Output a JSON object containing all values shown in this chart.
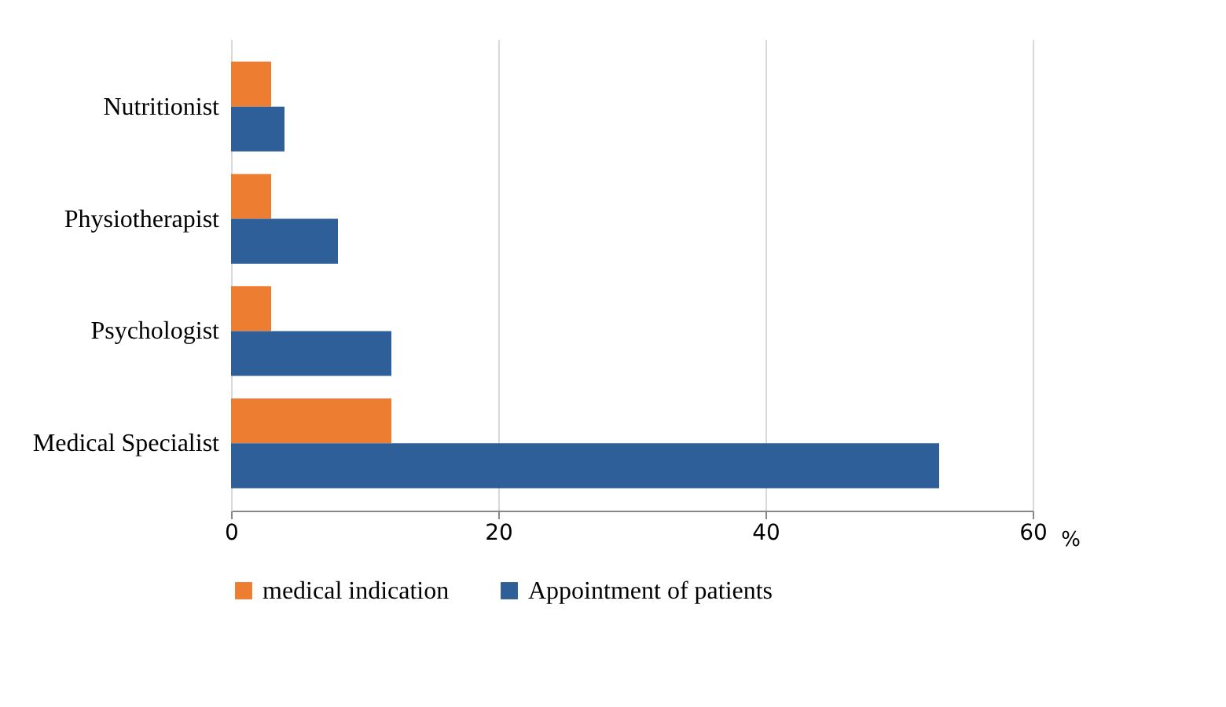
{
  "chart_data": {
    "type": "bar",
    "orientation": "horizontal",
    "xlabel": "%",
    "categories": [
      "Nutritionist",
      "Physiotherapist",
      "Psychologist",
      "Medical Specialist"
    ],
    "series": [
      {
        "name": "medical indication",
        "color": "#ed7d31",
        "values": [
          3,
          3,
          3,
          12
        ]
      },
      {
        "name": "Appointment of patients",
        "color": "#2f5f98",
        "values": [
          4,
          8,
          12,
          53
        ]
      }
    ],
    "xlim": [
      0,
      60
    ],
    "xticks": [
      0,
      20,
      40,
      60
    ],
    "grid": "x",
    "legend": "bottom"
  }
}
